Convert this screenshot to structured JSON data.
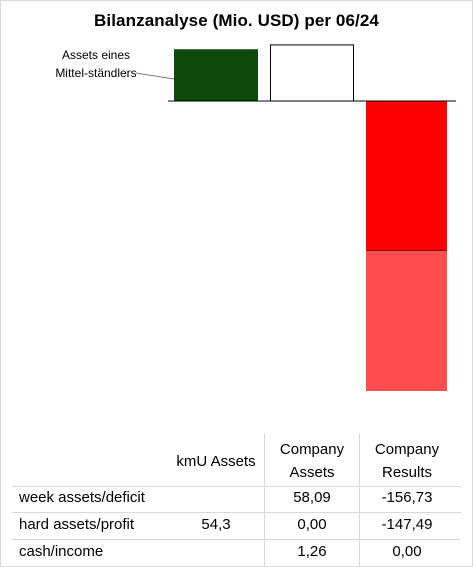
{
  "chart_data": {
    "type": "waterfall",
    "title": "Bilanzanalyse  (Mio. USD) per 06/24",
    "annotation": "Assets eines Mittel-ständlers",
    "columns": [
      "kmU Assets",
      "Company Assets",
      "Company Results"
    ],
    "rows": [
      {
        "label": "week assets/deficit",
        "values": [
          "",
          "58,09",
          "-156,73"
        ]
      },
      {
        "label": "hard assets/profit",
        "values": [
          "54,3",
          "0,00",
          "-147,49"
        ]
      },
      {
        "label": "cash/income",
        "values": [
          "",
          "1,26",
          "0,00"
        ]
      }
    ],
    "series": [
      {
        "column": "kmU Assets",
        "segments": [
          {
            "row": "hard assets/profit",
            "value": 54.3
          }
        ]
      },
      {
        "column": "Company Assets",
        "segments": [
          {
            "row": "week assets/deficit",
            "value": 58.09
          },
          {
            "row": "hard assets/profit",
            "value": 0.0
          },
          {
            "row": "cash/income",
            "value": 1.26
          }
        ]
      },
      {
        "column": "Company Results",
        "segments": [
          {
            "row": "week assets/deficit",
            "value": -156.73
          },
          {
            "row": "hard assets/profit",
            "value": -147.49
          },
          {
            "row": "cash/income",
            "value": 0.0
          }
        ]
      }
    ],
    "colors": {
      "kmu": "#0b4a0b",
      "assets_fill": "#ffffff",
      "assets_stroke": "#000000",
      "deficit": "#ff0000",
      "profit": "#ff4d4d"
    }
  }
}
